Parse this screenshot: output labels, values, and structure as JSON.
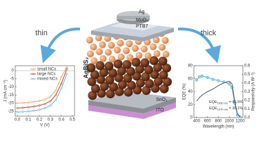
{
  "diagram": {
    "left_arrow": "thin",
    "right_arrow": "thick",
    "active_layer": "AgBiS₂",
    "layers": [
      "Ag",
      "MoO₃",
      "PTB7",
      "SnO₂",
      "ITO"
    ]
  },
  "chart_data": [
    {
      "type": "line",
      "xlabel": "V (V)",
      "ylabel": "J (mA cm⁻²)",
      "x": [
        0,
        0.05,
        0.1,
        0.15,
        0.2,
        0.25,
        0.3,
        0.35,
        0.4,
        0.45
      ],
      "series": [
        {
          "name": "small NCs",
          "color": "#f0a060",
          "values": [
            -20,
            -19.8,
            -19.5,
            -19.1,
            -18.6,
            -17.8,
            -16,
            -12,
            -4,
            2.5
          ]
        },
        {
          "name": "large NCs",
          "color": "#b5441b",
          "values": [
            -23,
            -22.8,
            -22.5,
            -22,
            -21.4,
            -20.5,
            -18.8,
            -15,
            -8,
            1
          ]
        },
        {
          "name": "mixed NCs",
          "color": "#5fb0e0",
          "values": [
            -25.5,
            -25.3,
            -25,
            -24.6,
            -24,
            -23,
            -21.5,
            -18,
            -11,
            -2
          ]
        }
      ],
      "xlim": [
        -0.02,
        0.52
      ],
      "xticks": [
        {
          "value": 0,
          "label": "0.0"
        },
        0.1,
        0.2,
        0.3,
        0.4,
        0.5
      ],
      "ylim": [
        -28,
        3
      ],
      "yticks": [
        0,
        -5,
        -10,
        -15,
        -20,
        -25
      ],
      "legend": "upper left"
    },
    {
      "type": "line",
      "xlabel": "Wavelength (nm)",
      "ylabel": "EQE (%)",
      "y2label": "Responsivity (A W⁻¹)",
      "x": [
        400,
        450,
        500,
        600,
        700,
        800,
        900,
        1000,
        1050,
        1100,
        1150,
        1200
      ],
      "series": [
        {
          "name": "EQE",
          "color": "#4aa3d8",
          "markers": true,
          "values": [
            58,
            63,
            64,
            62,
            59,
            57,
            55,
            52,
            46.5,
            22,
            4,
            1
          ]
        },
        {
          "name": "Responsivity",
          "color": "#555555",
          "axis": "y2",
          "values": [
            0.19,
            0.23,
            0.26,
            0.3,
            0.33,
            0.37,
            0.4,
            0.42,
            0.39,
            0.19,
            0.04,
            0.01
          ]
        }
      ],
      "xlim": [
        350,
        1250
      ],
      "xticks": [
        400,
        600,
        800,
        1000,
        1200
      ],
      "ylim": [
        0,
        80
      ],
      "yticks": [
        0,
        20,
        40,
        60,
        80
      ],
      "y2lim": [
        0,
        0.6
      ],
      "y2ticks": [
        {
          "value": 0,
          "label": "0.0"
        },
        0.1,
        0.2,
        0.3,
        0.4,
        0.5,
        0.6
      ],
      "annotations": [
        {
          "main": "EQE",
          "sub": "1050 nm",
          "rest": " = 46.5%"
        },
        {
          "main": "EQE",
          "sub": "1070 nm",
          "rest": " = 30.1%"
        }
      ]
    }
  ]
}
